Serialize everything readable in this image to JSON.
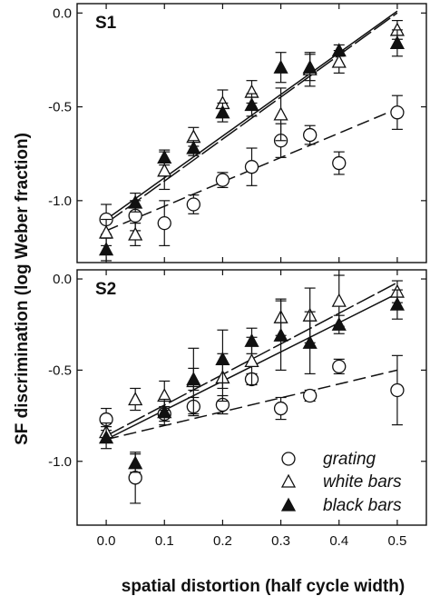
{
  "chart_data": {
    "type": "scatter",
    "ylabel": "SF discrimination (log Weber fraction)",
    "xlabel": "spatial distortion (half cycle width)",
    "x_ticks": [
      "0.0",
      "0.1",
      "0.2",
      "0.3",
      "0.4",
      "0.5"
    ],
    "y_ticks": [
      "0.0",
      "-0.5",
      "-1.0"
    ],
    "x_range": [
      -0.05,
      0.55
    ],
    "legend": {
      "position": "bottom-right of panel S2",
      "entries": [
        {
          "label": "grating",
          "marker": "open-circle"
        },
        {
          "label": "white bars",
          "marker": "open-triangle"
        },
        {
          "label": "black bars",
          "marker": "filled-triangle"
        }
      ]
    },
    "panels": [
      {
        "label": "S1",
        "ylim": [
          -1.33,
          0.05
        ],
        "series": [
          {
            "marker": "open-circle",
            "x": [
              0.0,
              0.05,
              0.1,
              0.15,
              0.2,
              0.25,
              0.3,
              0.35,
              0.4,
              0.5
            ],
            "y": [
              -1.1,
              -1.08,
              -1.12,
              -1.02,
              -0.89,
              -0.82,
              -0.68,
              -0.65,
              -0.8,
              -0.53
            ],
            "err": [
              0.08,
              0.08,
              0.12,
              0.05,
              0.04,
              0.1,
              0.09,
              0.05,
              0.06,
              0.09
            ],
            "fit": [
              -1.16,
              -0.51
            ]
          },
          {
            "marker": "open-triangle",
            "x": [
              0.0,
              0.05,
              0.1,
              0.15,
              0.2,
              0.25,
              0.3,
              0.35,
              0.4,
              0.5
            ],
            "y": [
              -1.17,
              -1.18,
              -0.84,
              -0.66,
              -0.48,
              -0.42,
              -0.54,
              -0.3,
              -0.26,
              -0.09
            ],
            "err": [
              0.07,
              0.06,
              0.1,
              0.05,
              0.07,
              0.06,
              0.14,
              0.09,
              0.06,
              0.05
            ],
            "fit": [
              -1.12,
              0.0
            ]
          },
          {
            "marker": "filled-triangle",
            "x": [
              0.0,
              0.05,
              0.1,
              0.15,
              0.2,
              0.25,
              0.3,
              0.35,
              0.4,
              0.5
            ],
            "y": [
              -1.26,
              -1.01,
              -0.77,
              -0.72,
              -0.53,
              -0.49,
              -0.29,
              -0.29,
              -0.2,
              -0.16
            ],
            "err": [
              0.06,
              0.05,
              0.04,
              0.04,
              0.05,
              0.06,
              0.08,
              0.07,
              0.03,
              0.07
            ],
            "fit": [
              -1.1,
              0.01
            ]
          }
        ]
      },
      {
        "label": "S2",
        "ylim": [
          -1.35,
          0.05
        ],
        "series": [
          {
            "marker": "open-circle",
            "x": [
              0.0,
              0.05,
              0.1,
              0.15,
              0.2,
              0.25,
              0.3,
              0.35,
              0.4,
              0.5
            ],
            "y": [
              -0.77,
              -1.09,
              -0.74,
              -0.7,
              -0.69,
              -0.55,
              -0.71,
              -0.64,
              -0.48,
              -0.61
            ],
            "err": [
              0.06,
              0.14,
              0.04,
              0.05,
              0.05,
              0.03,
              0.06,
              0.03,
              0.04,
              0.19
            ],
            "fit": [
              -0.88,
              -0.5
            ]
          },
          {
            "marker": "open-triangle",
            "x": [
              0.0,
              0.05,
              0.1,
              0.15,
              0.2,
              0.25,
              0.3,
              0.35,
              0.4,
              0.5
            ],
            "y": [
              -0.84,
              -0.66,
              -0.64,
              -0.56,
              -0.54,
              -0.45,
              -0.21,
              -0.2,
              -0.12,
              -0.07
            ],
            "err": [
              0.05,
              0.06,
              0.08,
              0.18,
              0.13,
              0.13,
              0.1,
              0.15,
              0.14,
              0.06
            ],
            "fit": [
              -0.86,
              -0.02
            ]
          },
          {
            "marker": "filled-triangle",
            "x": [
              0.0,
              0.05,
              0.1,
              0.15,
              0.2,
              0.25,
              0.3,
              0.35,
              0.4,
              0.5
            ],
            "y": [
              -0.87,
              -1.01,
              -0.73,
              -0.55,
              -0.44,
              -0.34,
              -0.31,
              -0.35,
              -0.25,
              -0.14
            ],
            "err": [
              0.06,
              0.05,
              0.07,
              0.06,
              0.16,
              0.07,
              0.19,
              0.17,
              0.05,
              0.08
            ],
            "fit": [
              -0.88,
              -0.08
            ]
          }
        ]
      }
    ]
  }
}
